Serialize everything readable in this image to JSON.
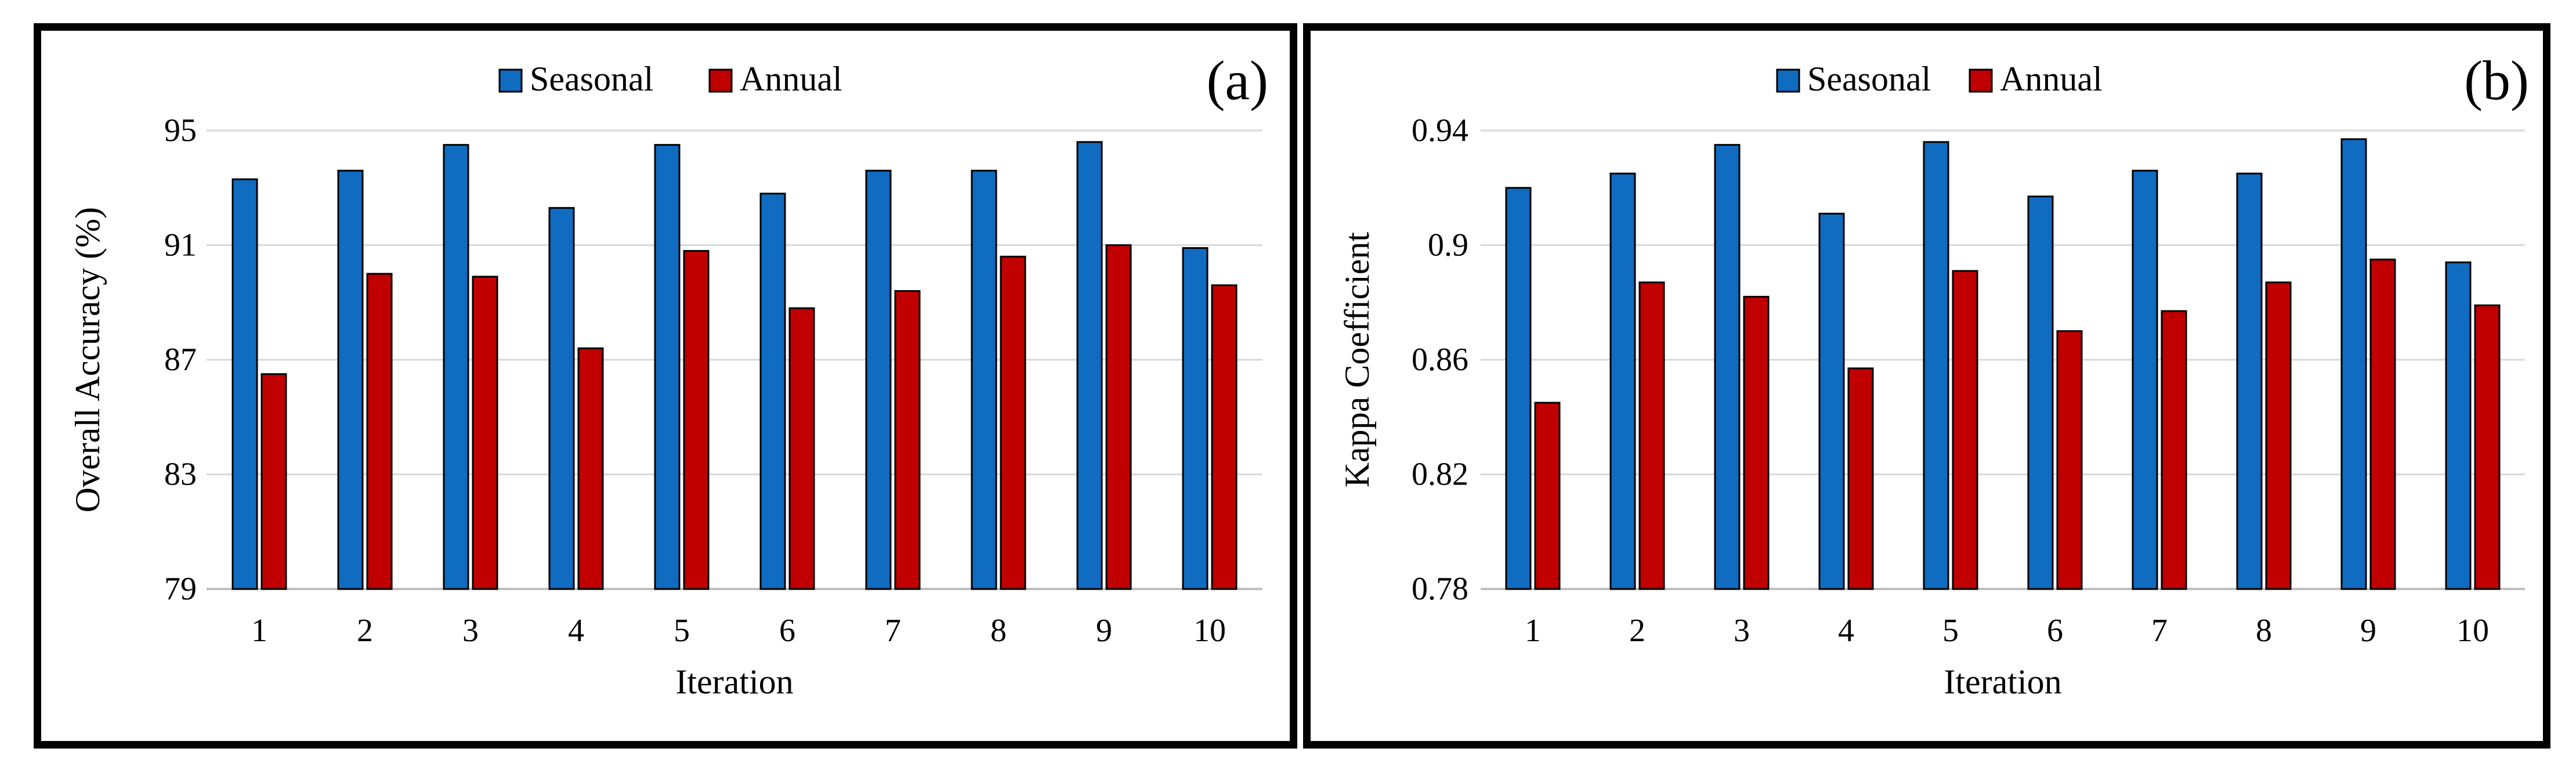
{
  "chart_data": [
    {
      "type": "bar",
      "panel_label": "(a)",
      "title": "",
      "xlabel": "Iteration",
      "ylabel": "Overall Accuracy (%)",
      "ylim": [
        79,
        95
      ],
      "yticks": [
        79,
        83,
        87,
        91,
        95
      ],
      "grid": true,
      "legend": "top-center",
      "categories": [
        "1",
        "2",
        "3",
        "4",
        "5",
        "6",
        "7",
        "8",
        "9",
        "10"
      ],
      "series": [
        {
          "name": "Seasonal",
          "color": "#0f6cc0",
          "values": [
            93.3,
            93.6,
            94.5,
            92.3,
            94.5,
            92.8,
            93.6,
            93.6,
            94.6,
            90.9
          ]
        },
        {
          "name": "Annual",
          "color": "#c00000",
          "values": [
            86.5,
            90.0,
            89.9,
            87.4,
            90.8,
            88.8,
            89.4,
            90.6,
            91.0,
            89.6
          ]
        }
      ]
    },
    {
      "type": "bar",
      "panel_label": "(b)",
      "title": "",
      "xlabel": "Iteration",
      "ylabel": "Kappa Coefficient",
      "ylim": [
        0.78,
        0.94
      ],
      "yticks": [
        "0.78",
        "0.82",
        "0.86",
        "0.9",
        "0.94"
      ],
      "grid": true,
      "legend": "top-center",
      "categories": [
        "1",
        "2",
        "3",
        "4",
        "5",
        "6",
        "7",
        "8",
        "9",
        "10"
      ],
      "series": [
        {
          "name": "Seasonal",
          "color": "#0f6cc0",
          "values": [
            0.92,
            0.925,
            0.935,
            0.911,
            0.936,
            0.917,
            0.926,
            0.925,
            0.937,
            0.894
          ]
        },
        {
          "name": "Annual",
          "color": "#c00000",
          "values": [
            0.845,
            0.887,
            0.882,
            0.857,
            0.891,
            0.87,
            0.877,
            0.887,
            0.895,
            0.879
          ]
        }
      ]
    }
  ]
}
